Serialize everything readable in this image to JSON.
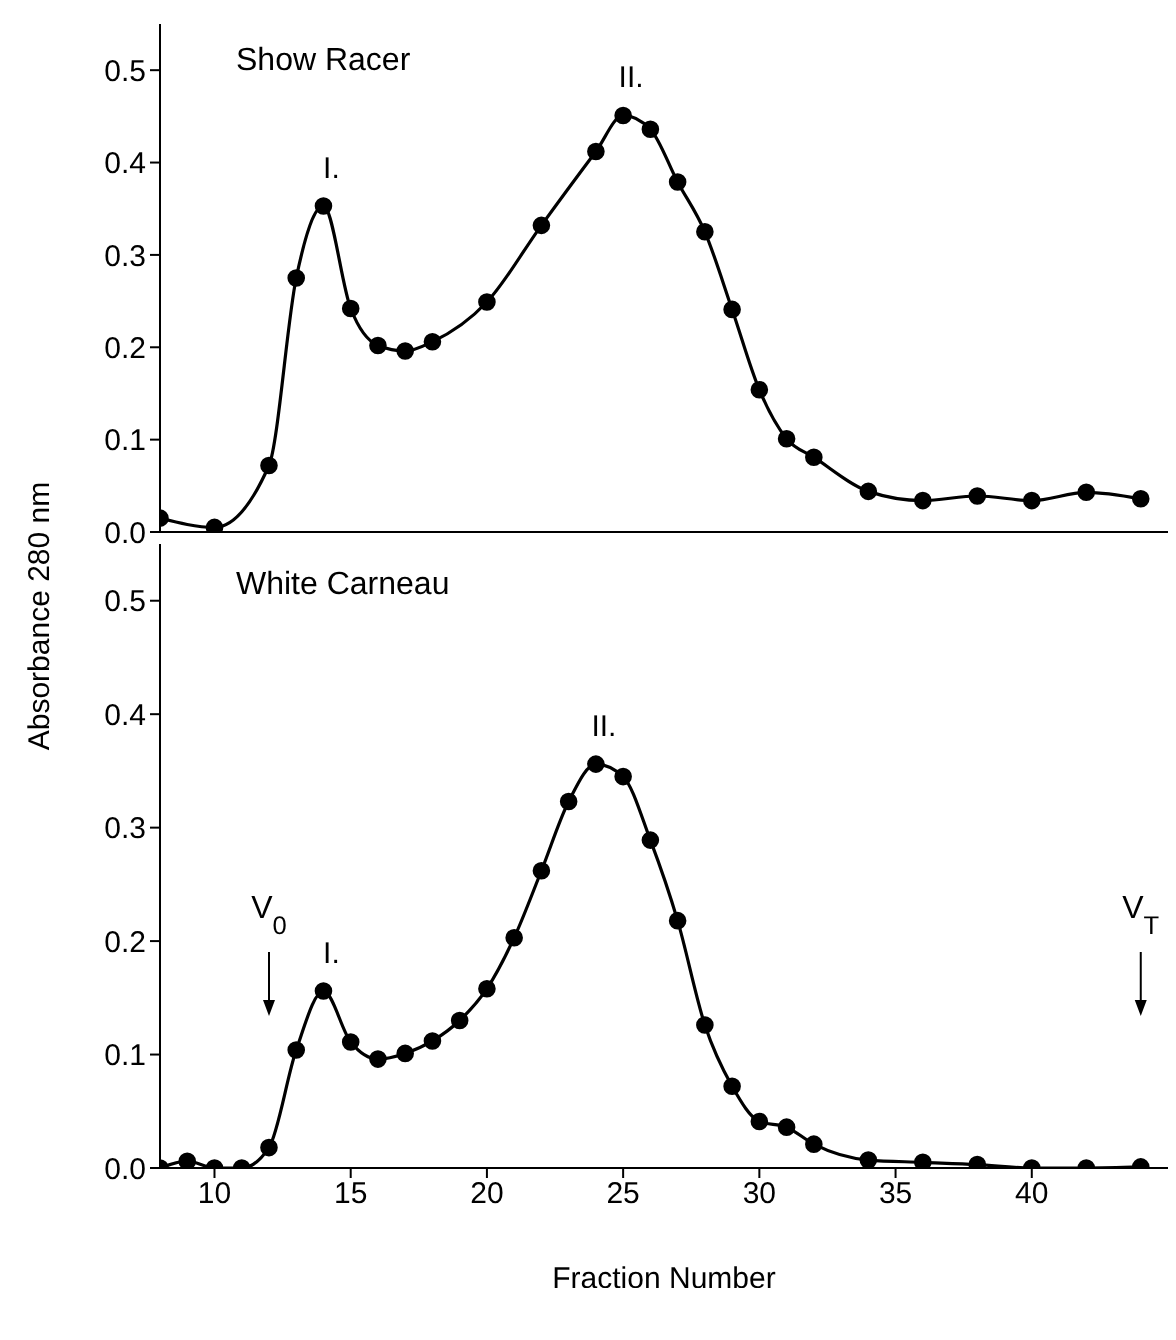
{
  "chart_data": [
    {
      "type": "line",
      "title": "Show Racer",
      "ylabel": "Absorbance 280 nm",
      "color": "#000000",
      "marker": "circle",
      "line_style": "solid",
      "tick_labels": "y",
      "x": [
        8,
        10,
        12,
        13,
        14,
        15,
        16,
        17,
        18,
        20,
        22,
        24,
        25,
        26,
        27,
        28,
        29,
        30,
        31,
        32,
        34,
        36,
        38,
        40,
        42,
        44
      ],
      "values": [
        0.015,
        0.005,
        0.072,
        0.275,
        0.353,
        0.242,
        0.202,
        0.196,
        0.206,
        0.249,
        0.332,
        0.412,
        0.451,
        0.436,
        0.379,
        0.325,
        0.241,
        0.154,
        0.101,
        0.081,
        0.044,
        0.034,
        0.039,
        0.034,
        0.043,
        0.036
      ],
      "xlim": [
        8,
        45
      ],
      "xticks": [
        10,
        15,
        20,
        25,
        30,
        35,
        40
      ],
      "ylim": [
        0,
        0.55
      ],
      "yticks": [
        {
          "value": 0,
          "label": "0.0"
        },
        0.1,
        0.2,
        0.3,
        0.4,
        0.5
      ],
      "annotations": [
        {
          "text": "I.",
          "x": 14,
          "y": 0.353
        },
        {
          "text": "II.",
          "x": 25,
          "y": 0.451
        }
      ]
    },
    {
      "type": "line",
      "title": "White Carneau",
      "xlabel": "Fraction Number",
      "color": "#000000",
      "marker": "circle",
      "line_style": "solid",
      "x": [
        8,
        9,
        10,
        11,
        12,
        13,
        14,
        15,
        16,
        17,
        18,
        19,
        20,
        21,
        22,
        23,
        24,
        25,
        26,
        27,
        28,
        29,
        30,
        31,
        32,
        34,
        36,
        38,
        40,
        42,
        44
      ],
      "values": [
        0,
        0.006,
        0,
        0,
        0.018,
        0.104,
        0.156,
        0.111,
        0.096,
        0.101,
        0.112,
        0.13,
        0.158,
        0.203,
        0.262,
        0.323,
        0.356,
        0.345,
        0.289,
        0.218,
        0.126,
        0.072,
        0.041,
        0.036,
        0.021,
        0.007,
        0.005,
        0.003,
        0,
        0,
        0.001
      ],
      "xlim": [
        8,
        45
      ],
      "xticks": [
        10,
        15,
        20,
        25,
        30,
        35,
        40
      ],
      "ylim": [
        0,
        0.55
      ],
      "yticks": [
        {
          "value": 0,
          "label": "0.0"
        },
        0.1,
        0.2,
        0.3,
        0.4,
        0.5
      ],
      "annotations": [
        {
          "text": "I.",
          "x": 14,
          "y": 0.156
        },
        {
          "text": "II.",
          "x": 24,
          "y": 0.356
        }
      ],
      "ref_lines": [
        {
          "axis": "x",
          "value": 12,
          "label": "V$_{0}$"
        },
        {
          "axis": "x",
          "value": 44,
          "label": "V$_{T}$"
        }
      ]
    }
  ]
}
